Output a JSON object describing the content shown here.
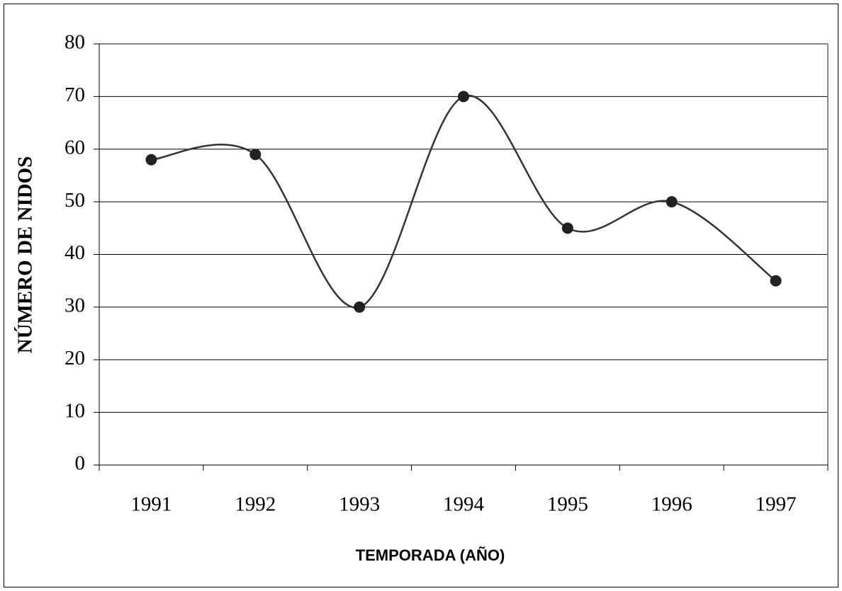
{
  "chart_data": {
    "type": "line",
    "smooth": true,
    "categories": [
      "1991",
      "1992",
      "1993",
      "1994",
      "1995",
      "1996",
      "1997"
    ],
    "series": [
      {
        "color": "#333333",
        "values": [
          58,
          59,
          30,
          70,
          45,
          50,
          35
        ]
      }
    ],
    "x_label": "TEMPORADA (AÑO)",
    "y_label": "NÚMERO DE NIDOS",
    "ylim": [
      0,
      80
    ],
    "yticks": [
      0,
      10,
      20,
      30,
      40,
      50,
      60,
      70,
      80
    ],
    "grid": true
  }
}
